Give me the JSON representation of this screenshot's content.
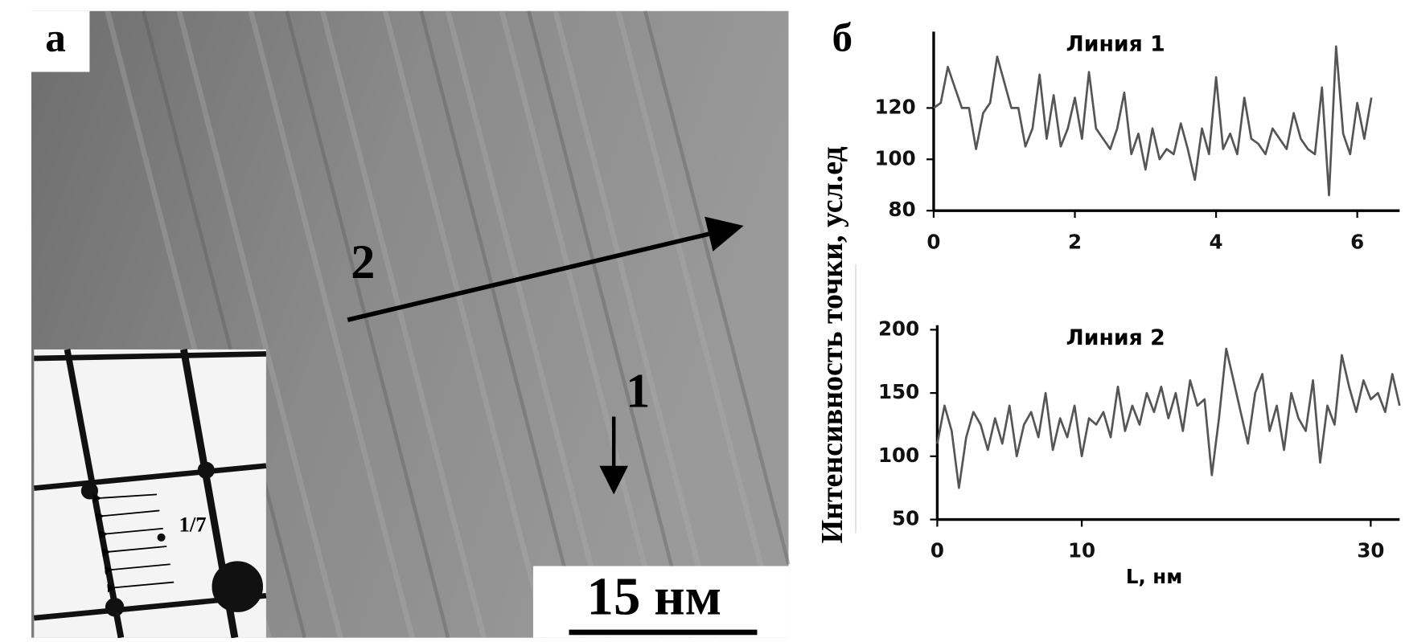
{
  "panel_a": {
    "label": "а",
    "arrow_2_label": "2",
    "arrow_1_label": "1",
    "inset_label": "1/7",
    "scale_bar": "15 нм"
  },
  "panel_b": {
    "label": "б",
    "y_label": "Интенсивность точки, усл.ед"
  },
  "chart_data": [
    {
      "type": "line",
      "title": "Линия 1",
      "color": "#555555",
      "x": [
        0,
        0.1,
        0.2,
        0.3,
        0.4,
        0.5,
        0.6,
        0.7,
        0.8,
        0.9,
        1,
        1.1,
        1.2,
        1.3,
        1.4,
        1.5,
        1.6,
        1.7,
        1.8,
        1.9,
        2,
        2.1,
        2.2,
        2.3,
        2.4,
        2.5,
        2.6,
        2.7,
        2.8,
        2.9,
        3,
        3.1,
        3.2,
        3.3,
        3.4,
        3.5,
        3.6,
        3.7,
        3.8,
        3.9,
        4,
        4.1,
        4.2,
        4.3,
        4.4,
        4.5,
        4.6,
        4.7,
        4.8,
        4.9,
        5,
        5.1,
        5.2,
        5.3,
        5.4,
        5.5,
        5.6,
        5.7,
        5.8,
        5.9,
        6,
        6.1,
        6.2
      ],
      "values": [
        120,
        122,
        136,
        128,
        120,
        120,
        104,
        118,
        122,
        140,
        130,
        120,
        120,
        105,
        112,
        133,
        108,
        125,
        105,
        112,
        124,
        108,
        134,
        112,
        108,
        104,
        112,
        126,
        102,
        110,
        96,
        112,
        100,
        104,
        102,
        114,
        104,
        92,
        112,
        102,
        132,
        104,
        110,
        102,
        124,
        108,
        106,
        102,
        112,
        108,
        104,
        118,
        108,
        104,
        102,
        128,
        86,
        144,
        110,
        102,
        122,
        108,
        124
      ],
      "xlim": [
        0,
        6.6
      ],
      "ylim": [
        80,
        148
      ],
      "xticks": [
        0,
        2,
        4,
        6
      ],
      "yticks": [
        80,
        100,
        120
      ]
    },
    {
      "type": "line",
      "title": "Линия 2",
      "x_label": "L, нм",
      "color": "#555555",
      "x": [
        0,
        0.5,
        1,
        1.5,
        2,
        2.5,
        3,
        3.5,
        4,
        4.5,
        5,
        5.5,
        6,
        6.5,
        7,
        7.5,
        8,
        8.5,
        9,
        9.5,
        10,
        10.5,
        11,
        11.5,
        12,
        12.5,
        13,
        13.5,
        14,
        14.5,
        15,
        15.5,
        16,
        16.5,
        17,
        17.5,
        18,
        18.5,
        19,
        19.5,
        20,
        20.5,
        21,
        21.5,
        22,
        22.5,
        23,
        23.5,
        24,
        24.5,
        25,
        25.5,
        26,
        26.5,
        27,
        27.5,
        28,
        28.5,
        29,
        29.5,
        30,
        30.5,
        31,
        31.5,
        32
      ],
      "values": [
        110,
        140,
        120,
        75,
        115,
        135,
        125,
        105,
        130,
        110,
        140,
        100,
        125,
        135,
        115,
        150,
        105,
        130,
        115,
        140,
        100,
        130,
        125,
        135,
        115,
        155,
        120,
        140,
        125,
        150,
        135,
        155,
        130,
        150,
        120,
        160,
        140,
        145,
        85,
        130,
        185,
        160,
        135,
        110,
        150,
        165,
        120,
        140,
        105,
        150,
        130,
        120,
        160,
        95,
        140,
        125,
        180,
        155,
        135,
        160,
        145,
        150,
        135,
        165,
        140
      ],
      "xlim": [
        0,
        32
      ],
      "ylim": [
        50,
        200
      ],
      "xticks": [
        0,
        10,
        30
      ],
      "yticks": [
        50,
        100,
        150,
        200
      ]
    }
  ]
}
